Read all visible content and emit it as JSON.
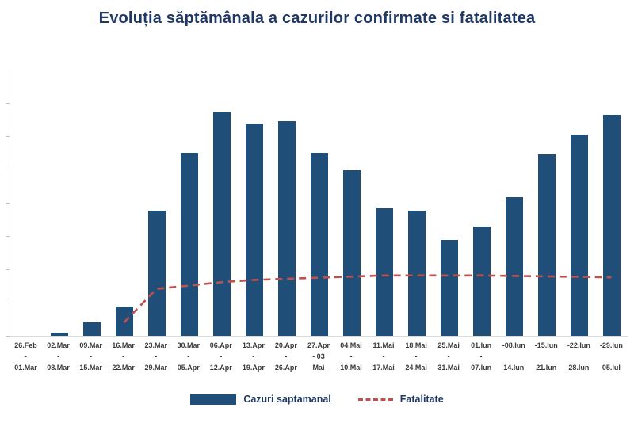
{
  "colors": {
    "bar": "#1F4E79",
    "line": "#C0504D",
    "title": "#1F3864"
  },
  "legend": {
    "bar_label": "Cazuri saptamanal",
    "line_label": "Fatalitate"
  },
  "chart_data": {
    "type": "bar",
    "title": "Evoluția săptămânala a cazurilor confirmate si fatalitatea",
    "xlabel": "",
    "ylabel": "",
    "value_scale": "relative, tallest bar = 100 (no y-axis tick labels visible)",
    "grid": false,
    "legend_position": "bottom",
    "categories": [
      [
        "26.Feb",
        "-",
        "01.Mar"
      ],
      [
        "02.Mar",
        "-",
        "08.Mar"
      ],
      [
        "09.Mar",
        "-",
        "15.Mar"
      ],
      [
        "16.Mar",
        "-",
        "22.Mar"
      ],
      [
        "23.Mar",
        "-",
        "29.Mar"
      ],
      [
        "30.Mar",
        "-",
        "05.Apr"
      ],
      [
        "06.Apr",
        "-",
        "12.Apr"
      ],
      [
        "13.Apr",
        "-",
        "19.Apr"
      ],
      [
        "20.Apr",
        "-",
        "26.Apr"
      ],
      [
        "27.Apr",
        "- 03",
        "Mai"
      ],
      [
        "04.Mai",
        "-",
        "10.Mai"
      ],
      [
        "11.Mai",
        "-",
        "17.Mai"
      ],
      [
        "18.Mai",
        "-",
        "24.Mai"
      ],
      [
        "25.Mai",
        "-",
        "31.Mai"
      ],
      [
        "01.Iun",
        "-",
        "07.Iun"
      ],
      [
        "-08.Iun",
        "",
        "14.Iun"
      ],
      [
        "-15.Iun",
        "",
        "21.Iun"
      ],
      [
        "-22.Iun",
        "",
        "28.Iun"
      ],
      [
        "-29.Iun",
        "",
        "05.Iul"
      ]
    ],
    "series": [
      {
        "name": "Cazuri saptamanal",
        "type": "bar",
        "values": [
          0,
          1.5,
          6,
          13,
          56,
          82,
          100,
          95,
          96,
          82,
          74,
          57,
          56,
          43,
          49,
          62,
          81,
          90,
          99
        ]
      },
      {
        "name": "Fatalitate",
        "type": "line",
        "values": [
          null,
          null,
          null,
          6,
          21,
          22.5,
          24,
          25,
          25.5,
          26,
          26.5,
          27,
          27,
          27,
          27,
          26.8,
          26.6,
          26.4,
          26.2
        ]
      }
    ]
  }
}
